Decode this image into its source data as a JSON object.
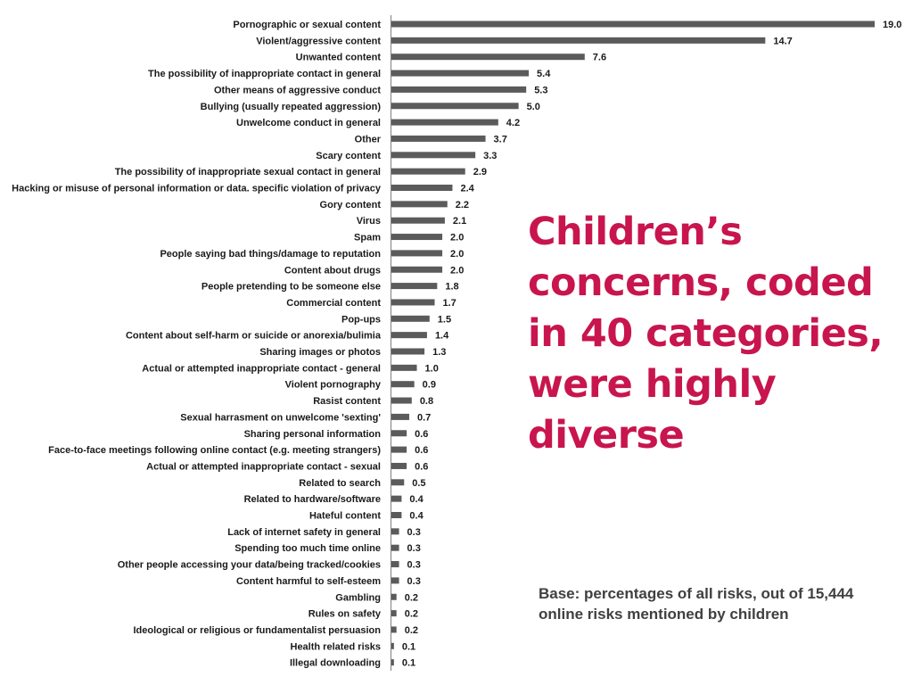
{
  "headline": "Children’s concerns, coded in 40 categories, were highly diverse",
  "base_note": "Base: percentages of all risks, out of 15,444 online risks mentioned by children",
  "colors": {
    "bar": "#5b5b5b",
    "axis": "#7f7f7f",
    "headline": "#c8154e",
    "note": "#404040"
  },
  "chart_data": {
    "type": "bar",
    "orientation": "horizontal",
    "title": "",
    "xlabel": "",
    "ylabel": "",
    "xlim": [
      0,
      19.0
    ],
    "grid": false,
    "legend": "none",
    "categories": [
      "Pornographic or sexual content",
      "Violent/aggressive content",
      "Unwanted content",
      "The possibility of inappropriate contact in general",
      "Other means of aggressive conduct",
      "Bullying (usually repeated aggression)",
      "Unwelcome conduct in general",
      "Other",
      "Scary content",
      "The possibility of inappropriate sexual contact in general",
      "Hacking or misuse of personal information or data. specific violation of privacy",
      "Gory content",
      "Virus",
      "Spam",
      "People saying bad things/damage to reputation",
      "Content about drugs",
      "People pretending to be someone else",
      "Commercial content",
      "Pop-ups",
      "Content about self-harm or suicide or anorexia/bulimia",
      "Sharing images or photos",
      "Actual or attempted inappropriate contact - general",
      "Violent pornography",
      "Rasist content",
      "Sexual harrasment on unwelcome 'sexting'",
      "Sharing personal information",
      "Face-to-face meetings following online contact (e.g. meeting strangers)",
      "Actual or attempted inappropriate contact - sexual",
      "Related to search",
      "Related to hardware/software",
      "Hateful content",
      "Lack of internet safety in general",
      "Spending too much time online",
      "Other people accessing your data/being tracked/cookies",
      "Content harmful to self-esteem",
      "Gambling",
      "Rules on safety",
      "Ideological or religious or fundamentalist persuasion",
      "Health related risks",
      "Illegal downloading"
    ],
    "values": [
      19.0,
      14.7,
      7.6,
      5.4,
      5.3,
      5.0,
      4.2,
      3.7,
      3.3,
      2.9,
      2.4,
      2.2,
      2.1,
      2.0,
      2.0,
      2.0,
      1.8,
      1.7,
      1.5,
      1.4,
      1.3,
      1.0,
      0.9,
      0.8,
      0.7,
      0.6,
      0.6,
      0.6,
      0.5,
      0.4,
      0.4,
      0.3,
      0.3,
      0.3,
      0.3,
      0.2,
      0.2,
      0.2,
      0.1,
      0.1
    ],
    "value_labels": [
      "19.0",
      "14.7",
      "7.6",
      "5.4",
      "5.3",
      "5.0",
      "4.2",
      "3.7",
      "3.3",
      "2.9",
      "2.4",
      "2.2",
      "2.1",
      "2.0",
      "2.0",
      "2.0",
      "1.8",
      "1.7",
      "1.5",
      "1.4",
      "1.3",
      "1.0",
      "0.9",
      "0.8",
      "0.7",
      "0.6",
      "0.6",
      "0.6",
      "0.5",
      "0.4",
      "0.4",
      "0.3",
      "0.3",
      "0.3",
      "0.3",
      "0.2",
      "0.2",
      "0.2",
      "0.1",
      "0.1"
    ]
  }
}
